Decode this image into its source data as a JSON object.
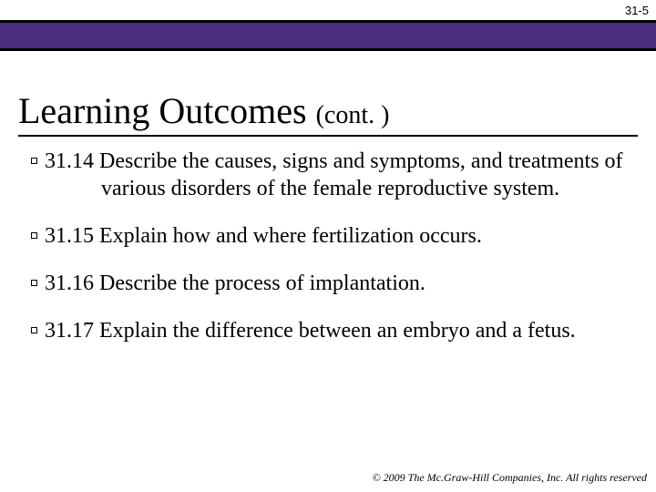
{
  "page_number": "31-5",
  "banner": {
    "background_color": "#4b2d7f",
    "border_color": "#000000",
    "border_width": 3,
    "height": 34
  },
  "heading": {
    "main": "Learning Outcomes",
    "suffix": "(cont. )",
    "font_size_main": 40,
    "font_size_suffix": 28,
    "color": "#000000"
  },
  "underline": {
    "color": "#000000",
    "thickness": 2
  },
  "bullet": {
    "type": "hollow-square",
    "size": 7,
    "border_color": "#000000",
    "fill_color": "#ffffff"
  },
  "outcomes": [
    {
      "number": "31.14",
      "text": "Describe the causes, signs and symptoms, and treatments of various disorders of the female reproductive system."
    },
    {
      "number": "31.15",
      "text": "Explain how and where fertilization occurs."
    },
    {
      "number": "31.16",
      "text": "Describe the process of implantation."
    },
    {
      "number": "31.17",
      "text": "Explain the difference between an embryo and a fetus."
    }
  ],
  "copyright": "© 2009 The Mc.Graw-Hill Companies, Inc. All rights reserved",
  "body_font_size": 24,
  "background_color": "#ffffff"
}
